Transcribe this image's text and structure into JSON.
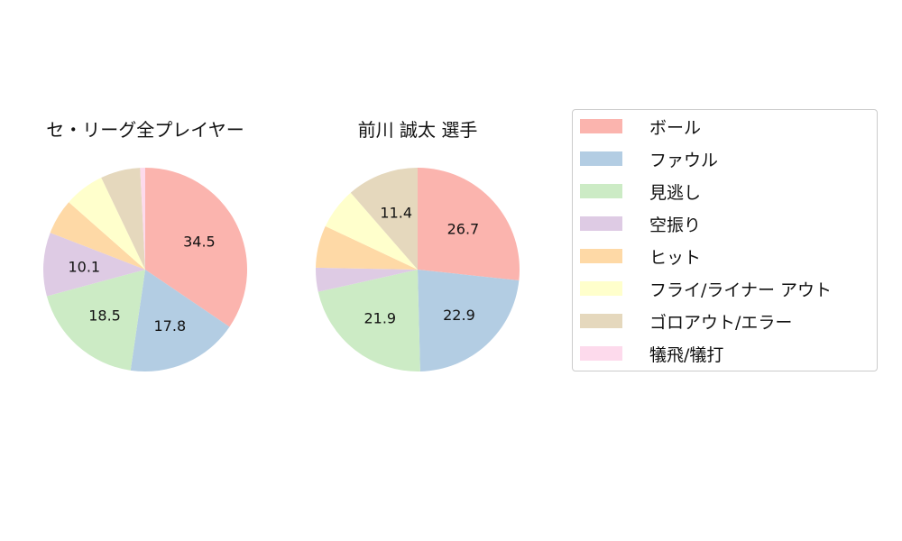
{
  "colors": {
    "ball": "#fbb4ae",
    "foul": "#b3cde3",
    "called_strike": "#ccebc5",
    "swinging_strike": "#decbe4",
    "hit": "#fed9a6",
    "fly_liner_out": "#ffffcc",
    "ground_out_error": "#e5d8bd",
    "sacrifice": "#fddaec"
  },
  "legend": {
    "items": [
      {
        "key": "ball",
        "label": "ボール"
      },
      {
        "key": "foul",
        "label": "ファウル"
      },
      {
        "key": "called_strike",
        "label": "見逃し"
      },
      {
        "key": "swinging_strike",
        "label": "空振り"
      },
      {
        "key": "hit",
        "label": "ヒット"
      },
      {
        "key": "fly_liner_out",
        "label": "フライ/ライナー アウト"
      },
      {
        "key": "ground_out_error",
        "label": "ゴロアウト/エラー"
      },
      {
        "key": "sacrifice",
        "label": "犠飛/犠打"
      }
    ]
  },
  "chart_data": [
    {
      "type": "pie",
      "title": "セ・リーグ全プレイヤー",
      "categories": [
        "ボール",
        "ファウル",
        "見逃し",
        "空振り",
        "ヒット",
        "フライ/ライナー アウト",
        "ゴロアウト/エラー",
        "犠飛/犠打"
      ],
      "values": [
        34.5,
        17.8,
        18.5,
        10.1,
        5.6,
        6.4,
        6.3,
        0.8
      ],
      "labels_shown": [
        "34.5",
        "17.8",
        "18.5",
        "10.1",
        "",
        "",
        "",
        ""
      ],
      "start_angle": 90,
      "direction": "clockwise"
    },
    {
      "type": "pie",
      "title": "前川 誠太  選手",
      "categories": [
        "ボール",
        "ファウル",
        "見逃し",
        "空振り",
        "ヒット",
        "フライ/ライナー アウト",
        "ゴロアウト/エラー",
        "犠飛/犠打"
      ],
      "values": [
        26.7,
        22.9,
        21.9,
        3.8,
        6.7,
        6.6,
        11.4,
        0.0
      ],
      "labels_shown": [
        "26.7",
        "22.9",
        "21.9",
        "",
        "",
        "",
        "11.4",
        ""
      ],
      "start_angle": 90,
      "direction": "clockwise"
    }
  ]
}
